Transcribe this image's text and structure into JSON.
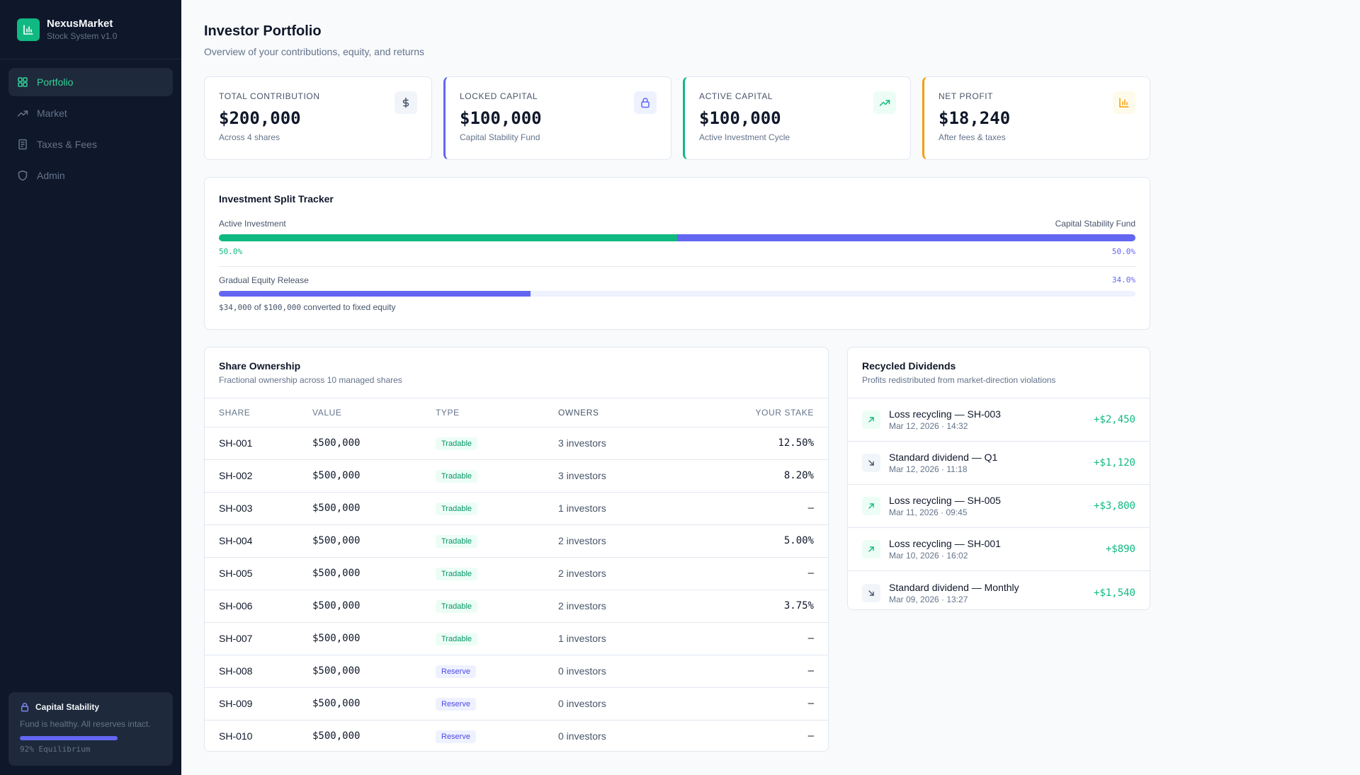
{
  "brand": {
    "name": "NexusMarket",
    "subtitle": "Stock System v1.0"
  },
  "nav": [
    {
      "label": "Portfolio",
      "icon": "grid-icon",
      "active": true
    },
    {
      "label": "Market",
      "icon": "trending-up-icon",
      "active": false
    },
    {
      "label": "Taxes & Fees",
      "icon": "receipt-icon",
      "active": false
    },
    {
      "label": "Admin",
      "icon": "shield-icon",
      "active": false
    }
  ],
  "stability": {
    "title": "Capital Stability",
    "text": "Fund is healthy. All reserves intact.",
    "equilibrium_pct": 92,
    "equilibrium_label": "92% Equilibrium"
  },
  "page": {
    "title": "Investor Portfolio",
    "subtitle": "Overview of your contributions, equity, and returns"
  },
  "stats": [
    {
      "label": "Total Contribution",
      "value": "$200,000",
      "note": "Across 4 shares",
      "icon": "dollar-icon",
      "accent": "#94a3b8"
    },
    {
      "label": "Locked Capital",
      "value": "$100,000",
      "note": "Capital Stability Fund",
      "icon": "lock-icon",
      "accent": "#6366f1"
    },
    {
      "label": "Active Capital",
      "value": "$100,000",
      "note": "Active Investment Cycle",
      "icon": "trending-up-icon",
      "accent": "#10b981"
    },
    {
      "label": "Net Profit",
      "value": "$18,240",
      "note": "After fees & taxes",
      "icon": "bar-chart-icon",
      "accent": "#f59e0b"
    }
  ],
  "tracker": {
    "title": "Investment Split Tracker",
    "left_label": "Active Investment",
    "right_label": "Capital Stability Fund",
    "left_pct": 50.0,
    "left_pct_label": "50.0%",
    "right_pct_label": "50.0%",
    "release_label": "Gradual Equity Release",
    "release_pct": 34.0,
    "release_pct_label": "34.0%",
    "release_converted": "$34,000",
    "release_of": "of",
    "release_total": "$100,000",
    "release_suffix": "converted to fixed equity"
  },
  "shares": {
    "title": "Share Ownership",
    "subtitle": "Fractional ownership across 10 managed shares",
    "columns": [
      "SHARE",
      "VALUE",
      "TYPE",
      "OWNERS",
      "YOUR STAKE"
    ],
    "rows": [
      {
        "id": "SH-001",
        "value": "$500,000",
        "type": "Tradable",
        "owners": "3 investors",
        "stake": "12.50%"
      },
      {
        "id": "SH-002",
        "value": "$500,000",
        "type": "Tradable",
        "owners": "3 investors",
        "stake": "8.20%"
      },
      {
        "id": "SH-003",
        "value": "$500,000",
        "type": "Tradable",
        "owners": "1 investors",
        "stake": "—"
      },
      {
        "id": "SH-004",
        "value": "$500,000",
        "type": "Tradable",
        "owners": "2 investors",
        "stake": "5.00%"
      },
      {
        "id": "SH-005",
        "value": "$500,000",
        "type": "Tradable",
        "owners": "2 investors",
        "stake": "—"
      },
      {
        "id": "SH-006",
        "value": "$500,000",
        "type": "Tradable",
        "owners": "2 investors",
        "stake": "3.75%"
      },
      {
        "id": "SH-007",
        "value": "$500,000",
        "type": "Tradable",
        "owners": "1 investors",
        "stake": "—"
      },
      {
        "id": "SH-008",
        "value": "$500,000",
        "type": "Reserve",
        "owners": "0 investors",
        "stake": "—"
      },
      {
        "id": "SH-009",
        "value": "$500,000",
        "type": "Reserve",
        "owners": "0 investors",
        "stake": "—"
      },
      {
        "id": "SH-010",
        "value": "$500,000",
        "type": "Reserve",
        "owners": "0 investors",
        "stake": "—"
      }
    ]
  },
  "dividends": {
    "title": "Recycled Dividends",
    "subtitle": "Profits redistributed from market-direction violations",
    "items": [
      {
        "title": "Loss recycling — SH-003",
        "time": "Mar 12, 2026 · 14:32",
        "amount": "+$2,450",
        "direction": "up"
      },
      {
        "title": "Standard dividend — Q1",
        "time": "Mar 12, 2026 · 11:18",
        "amount": "+$1,120",
        "direction": "down"
      },
      {
        "title": "Loss recycling — SH-005",
        "time": "Mar 11, 2026 · 09:45",
        "amount": "+$3,800",
        "direction": "up"
      },
      {
        "title": "Loss recycling — SH-001",
        "time": "Mar 10, 2026 · 16:02",
        "amount": "+$890",
        "direction": "up"
      },
      {
        "title": "Standard dividend — Monthly",
        "time": "Mar 09, 2026 · 13:27",
        "amount": "+$1,540",
        "direction": "down"
      }
    ]
  }
}
